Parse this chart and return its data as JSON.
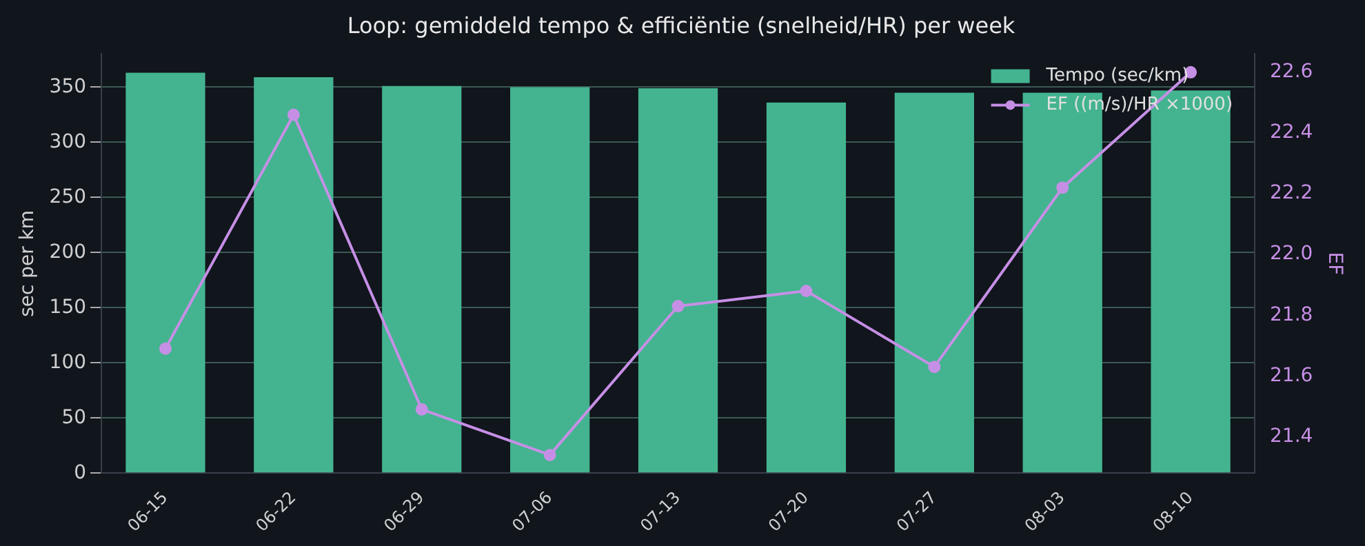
{
  "chart_data": {
    "type": "bar",
    "title": "Loop: gemiddeld tempo & efficiëntie (snelheid/HR) per week",
    "ylabel": "sec per km",
    "y2label": "EF",
    "categories": [
      "06-15",
      "06-22",
      "06-29",
      "07-06",
      "07-13",
      "07-20",
      "07-27",
      "08-03",
      "08-10"
    ],
    "series": [
      {
        "name": "Tempo (sec/km)",
        "color": "#43b48f",
        "values": [
          363,
          359,
          351,
          350,
          349,
          336,
          345,
          345,
          347
        ]
      },
      {
        "name": "EF ((m/s)/HR ×1000)",
        "type": "line",
        "axis": "y2",
        "color": "#c68fe6",
        "values": [
          21.69,
          22.46,
          21.49,
          21.34,
          21.83,
          21.88,
          21.63,
          22.22,
          22.6
        ]
      }
    ],
    "ylim": [
      0,
      380
    ],
    "yticks": [
      0,
      50,
      100,
      150,
      200,
      250,
      300,
      350
    ],
    "y2lim": [
      21.28,
      22.66
    ],
    "y2ticks": [
      21.4,
      21.6,
      21.8,
      {
        "value": 22,
        "label": "22.0"
      },
      22.2,
      22.4,
      22.6
    ],
    "grid": "y",
    "legend": "top right",
    "marker": "circle",
    "line_style": "solid"
  }
}
